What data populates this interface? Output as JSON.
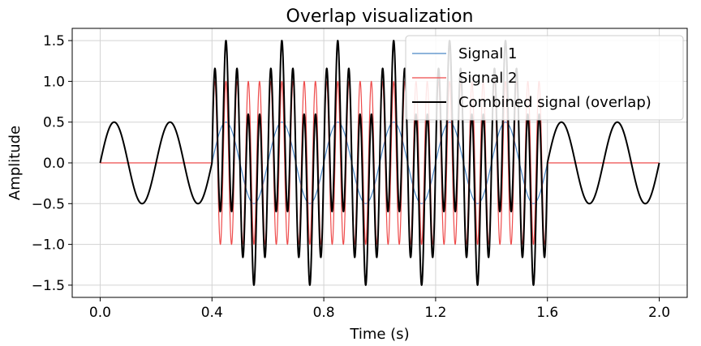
{
  "chart_data": {
    "type": "line",
    "title": "Overlap visualization",
    "xlabel": "Time (s)",
    "ylabel": "Amplitude",
    "xlim": [
      -0.1,
      2.1
    ],
    "ylim": [
      -1.65,
      1.65
    ],
    "xticks": [
      0.0,
      0.4,
      0.8,
      1.2,
      1.6,
      2.0
    ],
    "xtick_labels": [
      "0.0",
      "0.4",
      "0.8",
      "1.2",
      "1.6",
      "2.0"
    ],
    "yticks": [
      -1.5,
      -1.0,
      -0.5,
      0.0,
      0.5,
      1.0,
      1.5
    ],
    "ytick_labels": [
      "−1.5",
      "−1.0",
      "−0.5",
      "0.0",
      "0.5",
      "1.0",
      "1.5"
    ],
    "grid": true,
    "legend_position": "top-right",
    "series": [
      {
        "name": "Signal 1",
        "color": "#4a86c5",
        "amplitude": 0.5,
        "frequency_hz": 5,
        "active_range": [
          0.0,
          2.0
        ],
        "line_width": 1.2
      },
      {
        "name": "Signal 2",
        "color": "#ee4b4b",
        "amplitude": 1.0,
        "frequency_hz": 25,
        "active_range": [
          0.4,
          1.6
        ],
        "line_width": 1.2
      },
      {
        "name": "Combined signal (overlap)",
        "color": "#000000",
        "amplitude": 1.5,
        "frequency_hz": 0,
        "active_range": [
          0.0,
          2.0
        ],
        "line_width": 2.0
      }
    ]
  }
}
